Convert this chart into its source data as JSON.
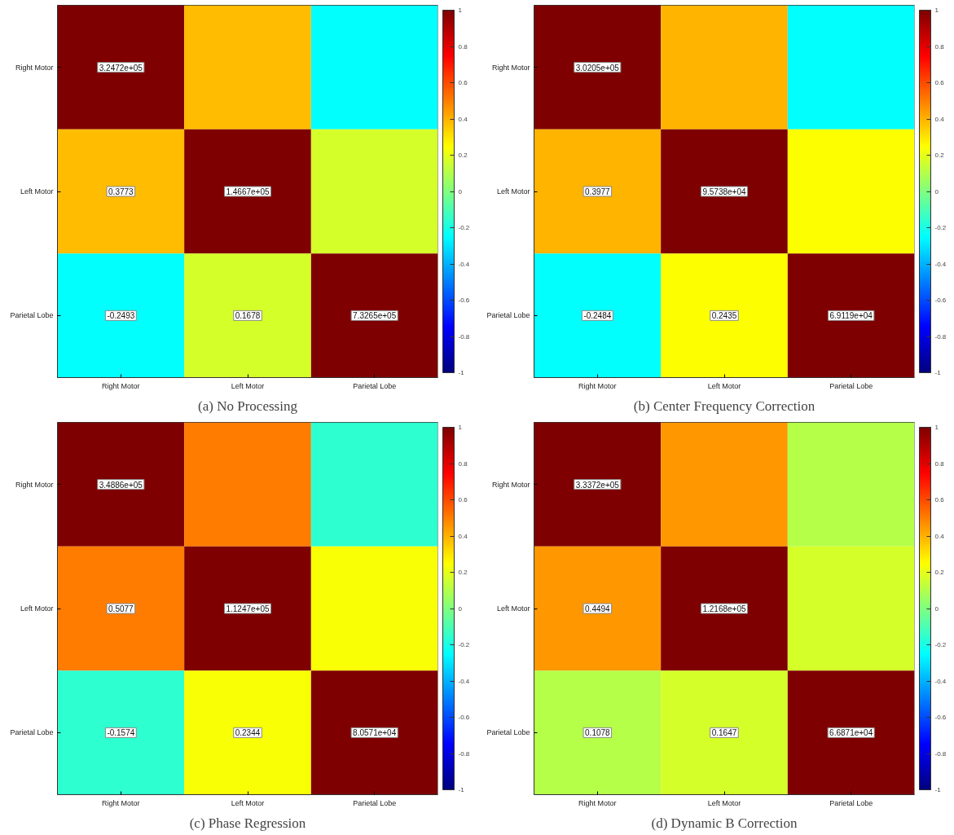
{
  "chart_data": [
    {
      "type": "heatmap",
      "title": "(a) No Processing",
      "categories": [
        "Right Motor",
        "Left Motor",
        "Parietal Lobe"
      ],
      "y_categories": [
        "Right Motor",
        "Left Motor",
        "Parietal Lobe"
      ],
      "cells": [
        [
          324720,
          0.3773,
          -0.2493
        ],
        [
          0.3773,
          146670,
          0.1678
        ],
        [
          -0.2493,
          0.1678,
          732650
        ]
      ],
      "cell_labels": [
        [
          "3.2472e+05",
          null,
          null
        ],
        [
          "0.3773",
          "1.4667e+05",
          null
        ],
        [
          "-0.2493",
          "0.1678",
          "7.3265e+05"
        ]
      ],
      "clim": [
        -1,
        1
      ],
      "cticks": [
        -1,
        -0.8,
        -0.6,
        -0.4,
        -0.2,
        0,
        0.2,
        0.4,
        0.6,
        0.8,
        1
      ]
    },
    {
      "type": "heatmap",
      "title": "(b) Center Frequency Correction",
      "categories": [
        "Right Motor",
        "Left Motor",
        "Parietal Lobe"
      ],
      "y_categories": [
        "Right Motor",
        "Left Motor",
        "Parietal Lobe"
      ],
      "cells": [
        [
          302050,
          0.3977,
          -0.2484
        ],
        [
          0.3977,
          95738,
          0.2435
        ],
        [
          -0.2484,
          0.2435,
          69119
        ]
      ],
      "cell_labels": [
        [
          "3.0205e+05",
          null,
          null
        ],
        [
          "0.3977",
          "9.5738e+04",
          null
        ],
        [
          "-0.2484",
          "0.2435",
          "6.9119e+04"
        ]
      ],
      "clim": [
        -1,
        1
      ],
      "cticks": [
        -1,
        -0.8,
        -0.6,
        -0.4,
        -0.2,
        0,
        0.2,
        0.4,
        0.6,
        0.8,
        1
      ]
    },
    {
      "type": "heatmap",
      "title": "(c) Phase Regression",
      "categories": [
        "Right Motor",
        "Left Motor",
        "Parietal Lobe"
      ],
      "y_categories": [
        "Right Motor",
        "Left Motor",
        "Parietal Lobe"
      ],
      "cells": [
        [
          348860,
          0.5077,
          -0.1574
        ],
        [
          0.5077,
          112470,
          0.2344
        ],
        [
          -0.1574,
          0.2344,
          80571
        ]
      ],
      "cell_labels": [
        [
          "3.4886e+05",
          null,
          null
        ],
        [
          "0.5077",
          "1.1247e+05",
          null
        ],
        [
          "-0.1574",
          "0.2344",
          "8.0571e+04"
        ]
      ],
      "clim": [
        -1,
        1
      ],
      "cticks": [
        -1,
        -0.8,
        -0.6,
        -0.4,
        -0.2,
        0,
        0.2,
        0.4,
        0.6,
        0.8,
        1
      ]
    },
    {
      "type": "heatmap",
      "title": "(d) Dynamic B Correction",
      "categories": [
        "Right Motor",
        "Left Motor",
        "Parietal Lobe"
      ],
      "y_categories": [
        "Right Motor",
        "Left Motor",
        "Parietal Lobe"
      ],
      "cells": [
        [
          333720,
          0.4494,
          0.1078
        ],
        [
          0.4494,
          121680,
          0.1647
        ],
        [
          0.1078,
          0.1647,
          66871
        ]
      ],
      "cell_labels": [
        [
          "3.3372e+05",
          null,
          null
        ],
        [
          "0.4494",
          "1.2168e+05",
          null
        ],
        [
          "0.1078",
          "0.1647",
          "6.6871e+04"
        ]
      ],
      "clim": [
        -1,
        1
      ],
      "cticks": [
        -1,
        -0.8,
        -0.6,
        -0.4,
        -0.2,
        0,
        0.2,
        0.4,
        0.6,
        0.8,
        1
      ]
    }
  ]
}
